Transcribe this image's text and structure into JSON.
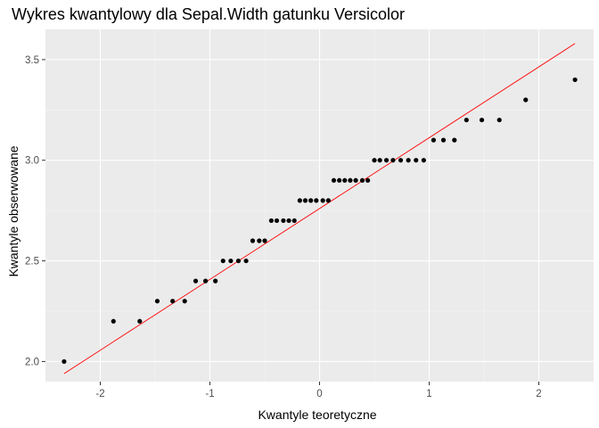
{
  "colors": {
    "panel_background": "#ebebeb",
    "grid_major": "#ffffff",
    "grid_minor": "#f5f5f5",
    "points": "#000000",
    "reference_line": "#ff0000",
    "tick_label": "#4d4d4d"
  },
  "chart_data": {
    "type": "scatter",
    "title": "Wykres kwantylowy dla Sepal.Width gatunku Versicolor",
    "xlabel": "Kwantyle teoretyczne",
    "ylabel": "Kwantyle obserwowane",
    "xlim": [
      -2.5,
      2.5
    ],
    "ylim": [
      1.9,
      3.65
    ],
    "xticks": [
      -2,
      -1,
      0,
      1,
      2
    ],
    "xtick_labels": [
      "-2",
      "-1",
      "0",
      "1",
      "2"
    ],
    "yticks": [
      2.0,
      2.5,
      3.0,
      3.5
    ],
    "ytick_labels": [
      "2.0",
      "2.5",
      "3.0",
      "3.5"
    ],
    "grid": true,
    "series": [
      {
        "points": [
          [
            -2.33,
            2.0
          ],
          [
            -1.88,
            2.2
          ],
          [
            -1.64,
            2.2
          ],
          [
            -1.48,
            2.3
          ],
          [
            -1.34,
            2.3
          ],
          [
            -1.23,
            2.3
          ],
          [
            -1.13,
            2.4
          ],
          [
            -1.04,
            2.4
          ],
          [
            -0.95,
            2.4
          ],
          [
            -0.88,
            2.5
          ],
          [
            -0.81,
            2.5
          ],
          [
            -0.74,
            2.5
          ],
          [
            -0.67,
            2.5
          ],
          [
            -0.61,
            2.6
          ],
          [
            -0.55,
            2.6
          ],
          [
            -0.5,
            2.6
          ],
          [
            -0.44,
            2.7
          ],
          [
            -0.39,
            2.7
          ],
          [
            -0.33,
            2.7
          ],
          [
            -0.28,
            2.7
          ],
          [
            -0.23,
            2.7
          ],
          [
            -0.18,
            2.8
          ],
          [
            -0.13,
            2.8
          ],
          [
            -0.08,
            2.8
          ],
          [
            -0.03,
            2.8
          ],
          [
            0.03,
            2.8
          ],
          [
            0.08,
            2.8
          ],
          [
            0.13,
            2.9
          ],
          [
            0.18,
            2.9
          ],
          [
            0.23,
            2.9
          ],
          [
            0.28,
            2.9
          ],
          [
            0.33,
            2.9
          ],
          [
            0.39,
            2.9
          ],
          [
            0.44,
            2.9
          ],
          [
            0.5,
            3.0
          ],
          [
            0.55,
            3.0
          ],
          [
            0.61,
            3.0
          ],
          [
            0.67,
            3.0
          ],
          [
            0.74,
            3.0
          ],
          [
            0.81,
            3.0
          ],
          [
            0.88,
            3.0
          ],
          [
            0.95,
            3.0
          ],
          [
            1.04,
            3.1
          ],
          [
            1.13,
            3.1
          ],
          [
            1.23,
            3.1
          ],
          [
            1.34,
            3.2
          ],
          [
            1.48,
            3.2
          ],
          [
            1.64,
            3.2
          ],
          [
            1.88,
            3.3
          ],
          [
            2.33,
            3.4
          ]
        ]
      }
    ],
    "reference_line": {
      "x": [
        -2.33,
        2.33
      ],
      "y": [
        1.94,
        3.58
      ]
    }
  }
}
